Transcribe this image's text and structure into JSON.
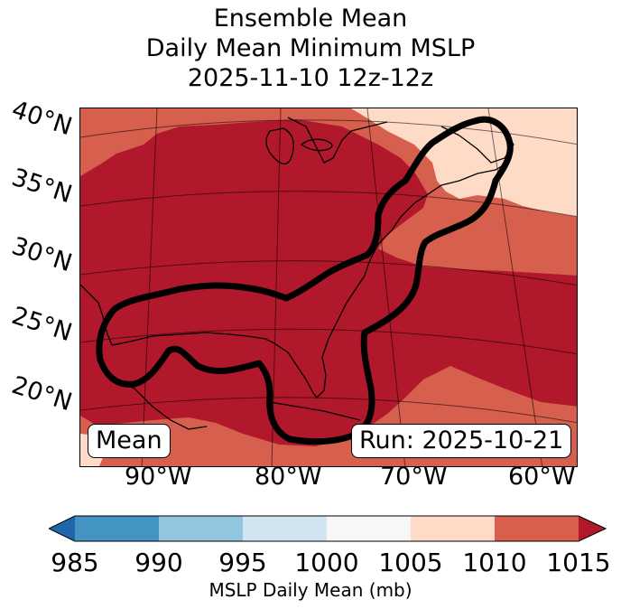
{
  "title": {
    "line1": "Ensemble Mean",
    "line2": "Daily Mean Minimum MSLP",
    "line3": "2025-11-10 12z-12z"
  },
  "lat_labels": [
    "40°N",
    "35°N",
    "30°N",
    "25°N",
    "20°N"
  ],
  "lon_labels": [
    "90°W",
    "80°W",
    "70°W",
    "60°W"
  ],
  "boxes": {
    "mean": "Mean",
    "run": "Run: 2025-10-21"
  },
  "colorbar": {
    "ticks": [
      "985",
      "990",
      "995",
      "1000",
      "1005",
      "1010",
      "1015"
    ],
    "label": "MSLP Daily Mean (mb)",
    "colors": {
      "below": "#2166ac",
      "c985_990": "#4393c3",
      "c990_995": "#92c5de",
      "c995_1000": "#d1e5f0",
      "c1000_1005": "#f7f7f7",
      "c1005_1010": "#fddbc7",
      "c1010_1015": "#d6604d",
      "above": "#b2182b"
    }
  },
  "map_fills": {
    "dark": "#b2182b",
    "mid": "#d6604d",
    "light": "#fddbc7",
    "contour": "#000000"
  }
}
